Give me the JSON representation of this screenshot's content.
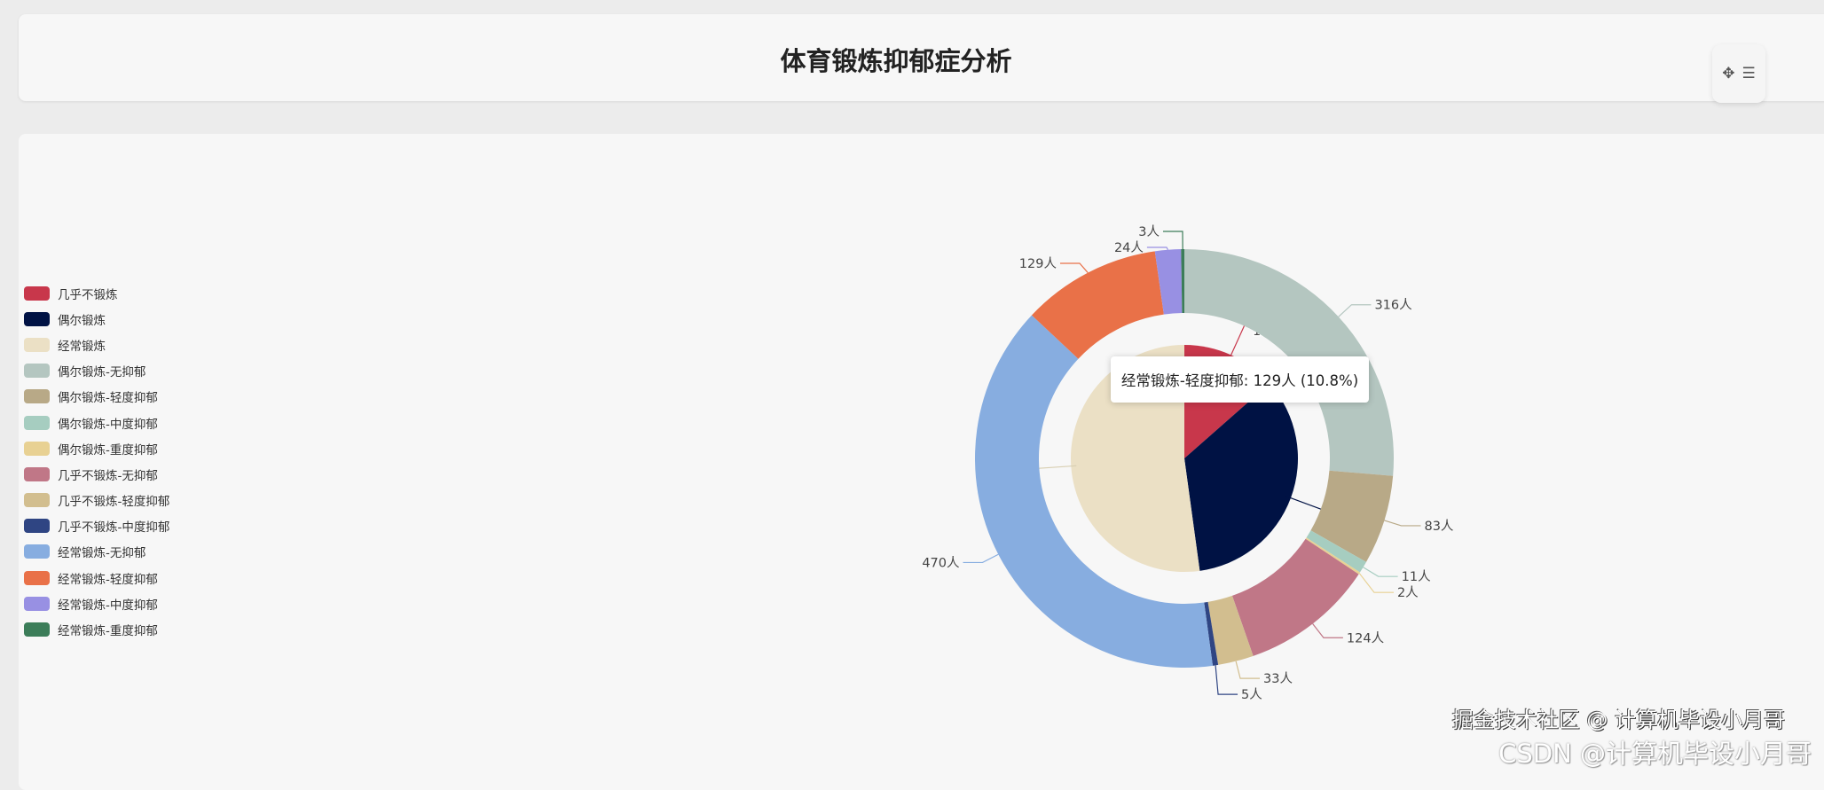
{
  "header": {
    "title": "体育锻炼抑郁症分析"
  },
  "toolbox": {
    "move_icon": "move-arrows-icon",
    "menu_icon": "list-menu-icon"
  },
  "tooltip": {
    "text": "经常锻炼-轻度抑郁: 129人 (10.8%)"
  },
  "watermark": {
    "csdn": "CSDN @计算机毕设小月哥",
    "juejin": "掘金技术社区 @ 计算机毕设小月哥"
  },
  "chart_data": {
    "type": "pie",
    "title": "体育锻炼抑郁症分析",
    "legend_position": "left",
    "unit": "人",
    "inner": [
      {
        "name": "几乎不锻炼",
        "value": 162,
        "label": "13.5%",
        "color": "#c8374b"
      },
      {
        "name": "偶尔锻炼",
        "value": 412,
        "label": "34.3%",
        "color": "#001244"
      },
      {
        "name": "经常锻炼",
        "value": 626,
        "label": "52.2%",
        "color": "#ebe0c5"
      }
    ],
    "outer": [
      {
        "name": "偶尔锻炼-无抑郁",
        "value": 316,
        "label": "316人",
        "color": "#b4c6c0"
      },
      {
        "name": "偶尔锻炼-轻度抑郁",
        "value": 83,
        "label": "83人",
        "color": "#b8a987"
      },
      {
        "name": "偶尔锻炼-中度抑郁",
        "value": 11,
        "label": "11人",
        "color": "#a6cdc0"
      },
      {
        "name": "偶尔锻炼-重度抑郁",
        "value": 2,
        "label": "2人",
        "color": "#e8d193"
      },
      {
        "name": "几乎不锻炼-无抑郁",
        "value": 124,
        "label": "124人",
        "color": "#c07787"
      },
      {
        "name": "几乎不锻炼-轻度抑郁",
        "value": 33,
        "label": "33人",
        "color": "#d2be8f"
      },
      {
        "name": "几乎不锻炼-中度抑郁",
        "value": 5,
        "label": "5人",
        "color": "#2f4583"
      },
      {
        "name": "经常锻炼-无抑郁",
        "value": 470,
        "label": "470人",
        "color": "#87ade0"
      },
      {
        "name": "经常锻炼-轻度抑郁",
        "value": 129,
        "label": "129人",
        "color": "#e97148"
      },
      {
        "name": "经常锻炼-中度抑郁",
        "value": 24,
        "label": "24人",
        "color": "#9890e3"
      },
      {
        "name": "经常锻炼-重度抑郁",
        "value": 3,
        "label": "3人",
        "color": "#3c7d59"
      }
    ]
  }
}
